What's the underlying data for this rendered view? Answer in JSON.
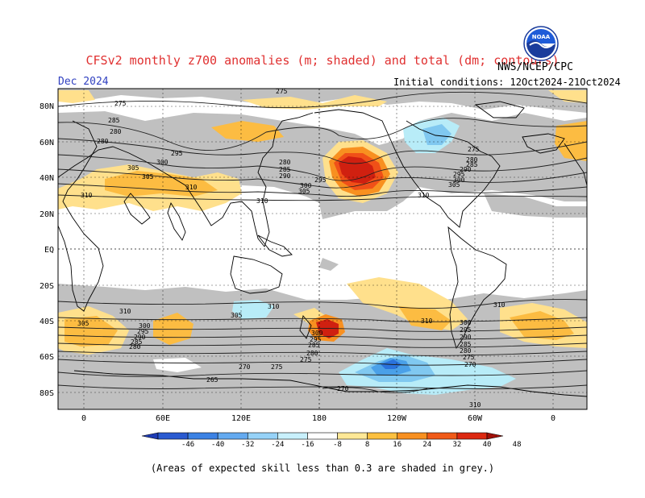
{
  "header": {
    "title": "CFSv2 monthly z700 anomalies (m; shaded) and total (dm; contours)",
    "period": "Dec 2024",
    "initial_conditions": "Initial conditions: 12Oct2024-21Oct2024",
    "agency": "NWS/NCEP/CPC",
    "logo_text": "NOAA"
  },
  "map": {
    "lat_labels": [
      "80N",
      "60N",
      "40N",
      "20N",
      "EQ",
      "20S",
      "40S",
      "60S",
      "80S"
    ],
    "lon_labels": [
      "0",
      "60E",
      "120E",
      "180",
      "120W",
      "60W",
      "0"
    ],
    "contour_labels": [
      "275",
      "285",
      "280",
      "295",
      "300",
      "305",
      "310",
      "280",
      "285",
      "290",
      "295",
      "300",
      "305",
      "310",
      "300",
      "305",
      "310",
      "275",
      "280",
      "285",
      "290",
      "295",
      "300",
      "305",
      "310",
      "310",
      "305",
      "300",
      "295",
      "290",
      "285",
      "280",
      "275",
      "270",
      "270",
      "275",
      "265",
      "270",
      "310",
      "305",
      "300",
      "295",
      "290",
      "285",
      "280"
    ],
    "colors": {
      "skill_grey": "#c0c0c0",
      "pos_8": "#ffe08c",
      "pos_16": "#fcbc42",
      "pos_24": "#f89020",
      "pos_32": "#f05018",
      "pos_40": "#d02010",
      "neg_8": "#b8ecf8",
      "neg_16": "#80c8f0",
      "neg_24": "#4aa0e8",
      "neg_32": "#2a72dc"
    }
  },
  "colorbar": {
    "ticks": [
      "-46",
      "-40",
      "-32",
      "-24",
      "-16",
      "-8",
      "8",
      "16",
      "24",
      "32",
      "40",
      "48"
    ],
    "colors": [
      "#1e3cb4",
      "#2a5ad0",
      "#3c82e4",
      "#64aaf0",
      "#96d2f8",
      "#c8f0fc",
      "#ffffff",
      "#ffe896",
      "#fcc040",
      "#f89020",
      "#f05a18",
      "#dc2810",
      "#a01008"
    ]
  },
  "footer": {
    "note": "(Areas of expected skill less than 0.3 are shaded in grey.)"
  }
}
